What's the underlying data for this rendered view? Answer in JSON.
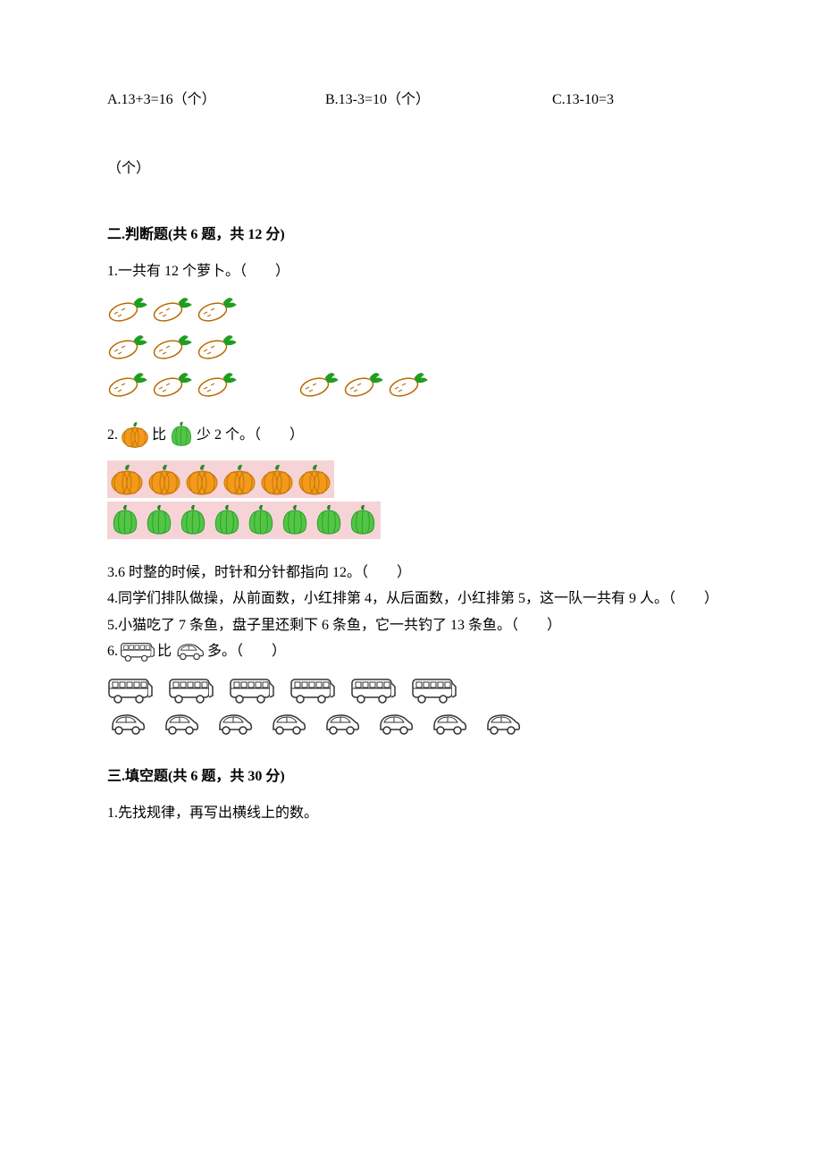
{
  "topOptions": {
    "a": "A.13+3=16（个）",
    "b": "B.13-3=10（个）",
    "c": "C.13-10=3",
    "cUnit": "（个）"
  },
  "section2": {
    "title": "二.判断题(共 6 题，共 12 分)",
    "q1": {
      "text": "1.一共有 12 个萝卜。（　　）",
      "carrotRows": [
        3,
        3,
        3
      ],
      "extraCarrots": 3
    },
    "q2": {
      "pre": "2.",
      "mid": "比",
      "post": "少 2 个。（　　）",
      "pumpkinCount": 6,
      "pepperCount": 8,
      "pumpkinColor": "#f39a1a",
      "pumpkinStem": "#2e8b2e",
      "pepperColor": "#53c545",
      "bandBg": "#f6d3d6"
    },
    "q3": "3.6 时整的时候，时针和分针都指向 12。（　　）",
    "q4": "4.同学们排队做操，从前面数，小红排第 4，从后面数，小红排第 5，这一队一共有 9 人。（　　）",
    "q5": "5.小猫吃了 7 条鱼，盘子里还剩下 6 条鱼，它一共钓了 13 条鱼。（　　）",
    "q6": {
      "pre": "6.",
      "mid": "比",
      "post": "多。（　　）",
      "busCount": 6,
      "carCount": 8
    }
  },
  "section3": {
    "title": "三.填空题(共 6 题，共 30 分)",
    "q1": "1.先找规律，再写出横线上的数。"
  },
  "colors": {
    "text": "#000000",
    "carrotBody": "#ffffff",
    "carrotOutline": "#b86a00",
    "carrotLeaf": "#1e9e1e",
    "busOutline": "#333333",
    "carOutline": "#333333"
  }
}
